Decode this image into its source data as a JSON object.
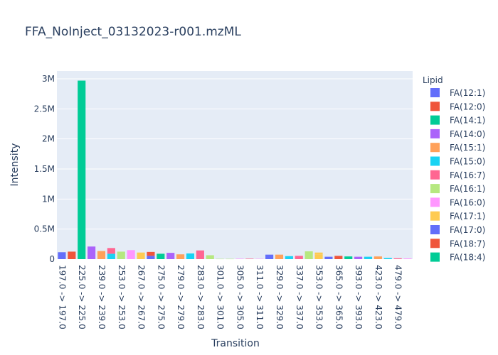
{
  "chart_data": {
    "type": "bar",
    "barmode": "stack",
    "title": "FFA_NoInject_03132023-r001.mzML",
    "xlabel": "Transition",
    "ylabel": "Intensity",
    "legend_title": "Lipid",
    "legend_position": "right",
    "grid": true,
    "ylim": [
      0,
      3000000
    ],
    "ytick_values": [
      0,
      500000,
      1000000,
      1500000,
      2000000,
      2500000,
      3000000
    ],
    "ytick_labels": [
      "0",
      "0.5M",
      "1M",
      "1.5M",
      "2M",
      "2.5M",
      "3M"
    ],
    "categories": [
      "197.0 -> 197.0",
      "211.0 -> 211.0",
      "225.0 -> 225.0",
      "227.0 -> 227.0",
      "239.0 -> 239.0",
      "241.0 -> 241.0",
      "253.0 -> 253.0",
      "255.0 -> 255.0",
      "267.0 -> 267.0",
      "269.0 -> 269.0",
      "275.0 -> 275.0",
      "277.0 -> 277.0",
      "279.0 -> 279.0",
      "281.0 -> 281.0",
      "283.0 -> 283.0",
      "299.0 -> 299.0",
      "301.0 -> 301.0",
      "303.0 -> 303.0",
      "305.0 -> 305.0",
      "309.0 -> 309.0",
      "311.0 -> 311.0",
      "327.0 -> 327.0",
      "329.0 -> 329.0",
      "331.0 -> 331.0",
      "337.0 -> 337.0",
      "351.0 -> 351.0",
      "353.0 -> 353.0",
      "363.0 -> 363.0",
      "365.0 -> 365.0",
      "379.0 -> 379.0",
      "393.0 -> 393.0",
      "409.0 -> 409.0",
      "423.0 -> 423.0",
      "451.0 -> 451.0",
      "479.0 -> 479.0",
      "507.0 -> 507.0"
    ],
    "xtick_labels_shown": [
      "197.0 -> 197.0",
      "225.0 -> 225.0",
      "239.0 -> 239.0",
      "253.0 -> 253.0",
      "267.0 -> 267.0",
      "275.0 -> 275.0",
      "279.0 -> 279.0",
      "283.0 -> 283.0",
      "301.0 -> 301.0",
      "305.0 -> 305.0",
      "311.0 -> 311.0",
      "329.0 -> 329.0",
      "337.0 -> 337.0",
      "353.0 -> 353.0",
      "365.0 -> 365.0",
      "393.0 -> 393.0",
      "423.0 -> 423.0",
      "479.0 -> 479.0"
    ],
    "series": [
      {
        "name": "FA(12:1)",
        "color": "#636efa",
        "points": [
          {
            "x": "197.0 -> 197.0",
            "y": 115000
          }
        ]
      },
      {
        "name": "FA(12:0)",
        "color": "#EF553B",
        "points": [
          {
            "x": "211.0 -> 211.0",
            "y": 125000
          }
        ]
      },
      {
        "name": "FA(14:1)",
        "color": "#00cc96",
        "points": [
          {
            "x": "225.0 -> 225.0",
            "y": 2970000
          }
        ]
      },
      {
        "name": "FA(14:0)",
        "color": "#ab63fa",
        "points": [
          {
            "x": "227.0 -> 227.0",
            "y": 210000
          }
        ]
      },
      {
        "name": "FA(15:1)",
        "color": "#FFA15A",
        "points": [
          {
            "x": "239.0 -> 239.0",
            "y": 135000
          }
        ]
      },
      {
        "name": "FA(15:0)",
        "color": "#19d3f3",
        "points": [
          {
            "x": "241.0 -> 241.0",
            "y": 90000
          },
          {
            "x": "409.0 -> 409.0",
            "y": 40000
          }
        ]
      },
      {
        "name": "FA(16:7)",
        "color": "#FF6692",
        "points": [
          {
            "x": "241.0 -> 241.0",
            "y": 95000
          },
          {
            "x": "283.0 -> 283.0",
            "y": 145000
          },
          {
            "x": "337.0 -> 337.0",
            "y": 55000
          }
        ]
      },
      {
        "name": "FA(16:1)",
        "color": "#B6E880",
        "points": [
          {
            "x": "253.0 -> 253.0",
            "y": 125000
          },
          {
            "x": "299.0 -> 299.0",
            "y": 65000
          },
          {
            "x": "351.0 -> 351.0",
            "y": 130000
          }
        ]
      },
      {
        "name": "FA(16:0)",
        "color": "#FF97FF",
        "points": [
          {
            "x": "255.0 -> 255.0",
            "y": 150000
          },
          {
            "x": "507.0 -> 507.0",
            "y": 12000
          }
        ]
      },
      {
        "name": "FA(17:1)",
        "color": "#FECB52",
        "points": [
          {
            "x": "267.0 -> 267.0",
            "y": 110000
          },
          {
            "x": "353.0 -> 353.0",
            "y": 80000
          }
        ]
      },
      {
        "name": "FA(17:0)",
        "color": "#636efa",
        "points": [
          {
            "x": "269.0 -> 269.0",
            "y": 55000
          },
          {
            "x": "327.0 -> 327.0",
            "y": 75000
          },
          {
            "x": "363.0 -> 363.0",
            "y": 40000
          }
        ]
      },
      {
        "name": "FA(18:7)",
        "color": "#EF553B",
        "points": [
          {
            "x": "269.0 -> 269.0",
            "y": 65000
          },
          {
            "x": "365.0 -> 365.0",
            "y": 55000
          }
        ]
      },
      {
        "name": "FA(18:4)",
        "color": "#00cc96",
        "points": [
          {
            "x": "275.0 -> 275.0",
            "y": 90000
          },
          {
            "x": "379.0 -> 379.0",
            "y": 45000
          }
        ]
      },
      {
        "name": "",
        "color": "#ab63fa",
        "points": [
          {
            "x": "277.0 -> 277.0",
            "y": 105000
          },
          {
            "x": "393.0 -> 393.0",
            "y": 40000
          }
        ]
      },
      {
        "name": "",
        "color": "#FFA15A",
        "points": [
          {
            "x": "279.0 -> 279.0",
            "y": 80000
          },
          {
            "x": "329.0 -> 329.0",
            "y": 75000
          },
          {
            "x": "423.0 -> 423.0",
            "y": 45000
          }
        ]
      },
      {
        "name": "",
        "color": "#19d3f3",
        "points": [
          {
            "x": "281.0 -> 281.0",
            "y": 95000
          },
          {
            "x": "331.0 -> 331.0",
            "y": 50000
          },
          {
            "x": "451.0 -> 451.0",
            "y": 20000
          }
        ]
      },
      {
        "name": "",
        "color": "#FF6692",
        "points": [
          {
            "x": "309.0 -> 309.0",
            "y": 8000
          },
          {
            "x": "479.0 -> 479.0",
            "y": 15000
          }
        ]
      },
      {
        "name": "",
        "color": "#B6E880",
        "points": [
          {
            "x": "301.0 -> 301.0",
            "y": 5000
          },
          {
            "x": "303.0 -> 303.0",
            "y": 5000
          }
        ]
      },
      {
        "name": "",
        "color": "#FF97FF",
        "points": [
          {
            "x": "305.0 -> 305.0",
            "y": 8000
          },
          {
            "x": "311.0 -> 311.0",
            "y": 6000
          }
        ]
      },
      {
        "name": "",
        "color": "#FECB52",
        "points": [
          {
            "x": "353.0 -> 353.0",
            "y": 30000
          }
        ]
      }
    ]
  }
}
